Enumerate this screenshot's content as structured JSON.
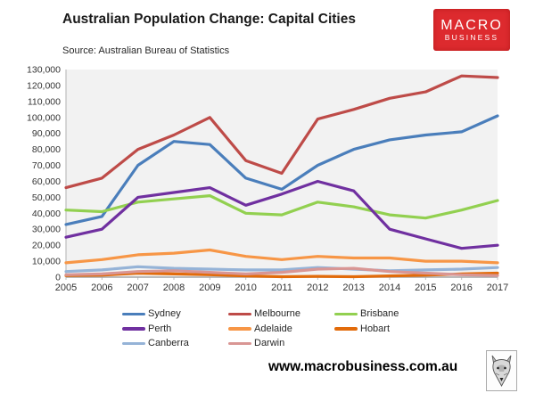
{
  "header": {
    "title": "Australian Population Change: Capital Cities",
    "source": "Source: Australian Bureau of Statistics",
    "logo": {
      "line1": "MACRO",
      "line2": "BUSINESS",
      "bg_color": "#dd2a2e",
      "text_color": "#ffffff"
    }
  },
  "chart_data": {
    "type": "line",
    "title": "Australian Population Change: Capital Cities",
    "xlabel": "",
    "ylabel": "",
    "categories": [
      "2005",
      "2006",
      "2007",
      "2008",
      "2009",
      "2010",
      "2011",
      "2012",
      "2013",
      "2014",
      "2015",
      "2016",
      "2017"
    ],
    "ylim": [
      0,
      130000
    ],
    "ytick_step": 10000,
    "ytick_labels": [
      "0",
      "10,000",
      "20,000",
      "30,000",
      "40,000",
      "50,000",
      "60,000",
      "70,000",
      "80,000",
      "90,000",
      "100,000",
      "110,000",
      "120,000",
      "130,000"
    ],
    "grid": false,
    "plot_bg": "#f2f2f2",
    "axis_color": "#bfbfbf",
    "tick_label_color": "#333333",
    "legend_position": "bottom",
    "series": [
      {
        "name": "Sydney",
        "color": "#4a7ebb",
        "values": [
          33000,
          38000,
          70000,
          85000,
          83000,
          62000,
          55000,
          70000,
          80000,
          86000,
          89000,
          91000,
          101000
        ]
      },
      {
        "name": "Melbourne",
        "color": "#be4b48",
        "values": [
          56000,
          62000,
          80000,
          89000,
          100000,
          73000,
          65000,
          99000,
          105000,
          112000,
          116000,
          126000,
          125000
        ]
      },
      {
        "name": "Brisbane",
        "color": "#92d050",
        "values": [
          42000,
          41000,
          47000,
          49000,
          51000,
          40000,
          39000,
          47000,
          44000,
          39000,
          37000,
          42000,
          48000
        ]
      },
      {
        "name": "Perth",
        "color": "#7030a0",
        "values": [
          25000,
          30000,
          50000,
          53000,
          56000,
          45000,
          52000,
          60000,
          54000,
          30000,
          24000,
          18000,
          20000
        ]
      },
      {
        "name": "Adelaide",
        "color": "#f79646",
        "values": [
          9000,
          11000,
          14000,
          15000,
          17000,
          13000,
          11000,
          13000,
          12000,
          12000,
          10000,
          10000,
          9000
        ]
      },
      {
        "name": "Hobart",
        "color": "#e26b0a",
        "values": [
          1000,
          1200,
          2500,
          2000,
          1500,
          800,
          300,
          500,
          300,
          800,
          1200,
          2000,
          2500
        ]
      },
      {
        "name": "Canberra",
        "color": "#95b3d7",
        "values": [
          3500,
          4500,
          6500,
          5500,
          5000,
          4500,
          4500,
          6000,
          5000,
          4000,
          4500,
          5000,
          6000
        ]
      },
      {
        "name": "Darwin",
        "color": "#d99694",
        "values": [
          1500,
          2000,
          3500,
          4000,
          3000,
          2000,
          3000,
          5000,
          5500,
          3500,
          2500,
          1500,
          1000
        ]
      }
    ]
  },
  "footer": {
    "url": "www.macrobusiness.com.au",
    "logo_icon": "wolf-logo"
  }
}
